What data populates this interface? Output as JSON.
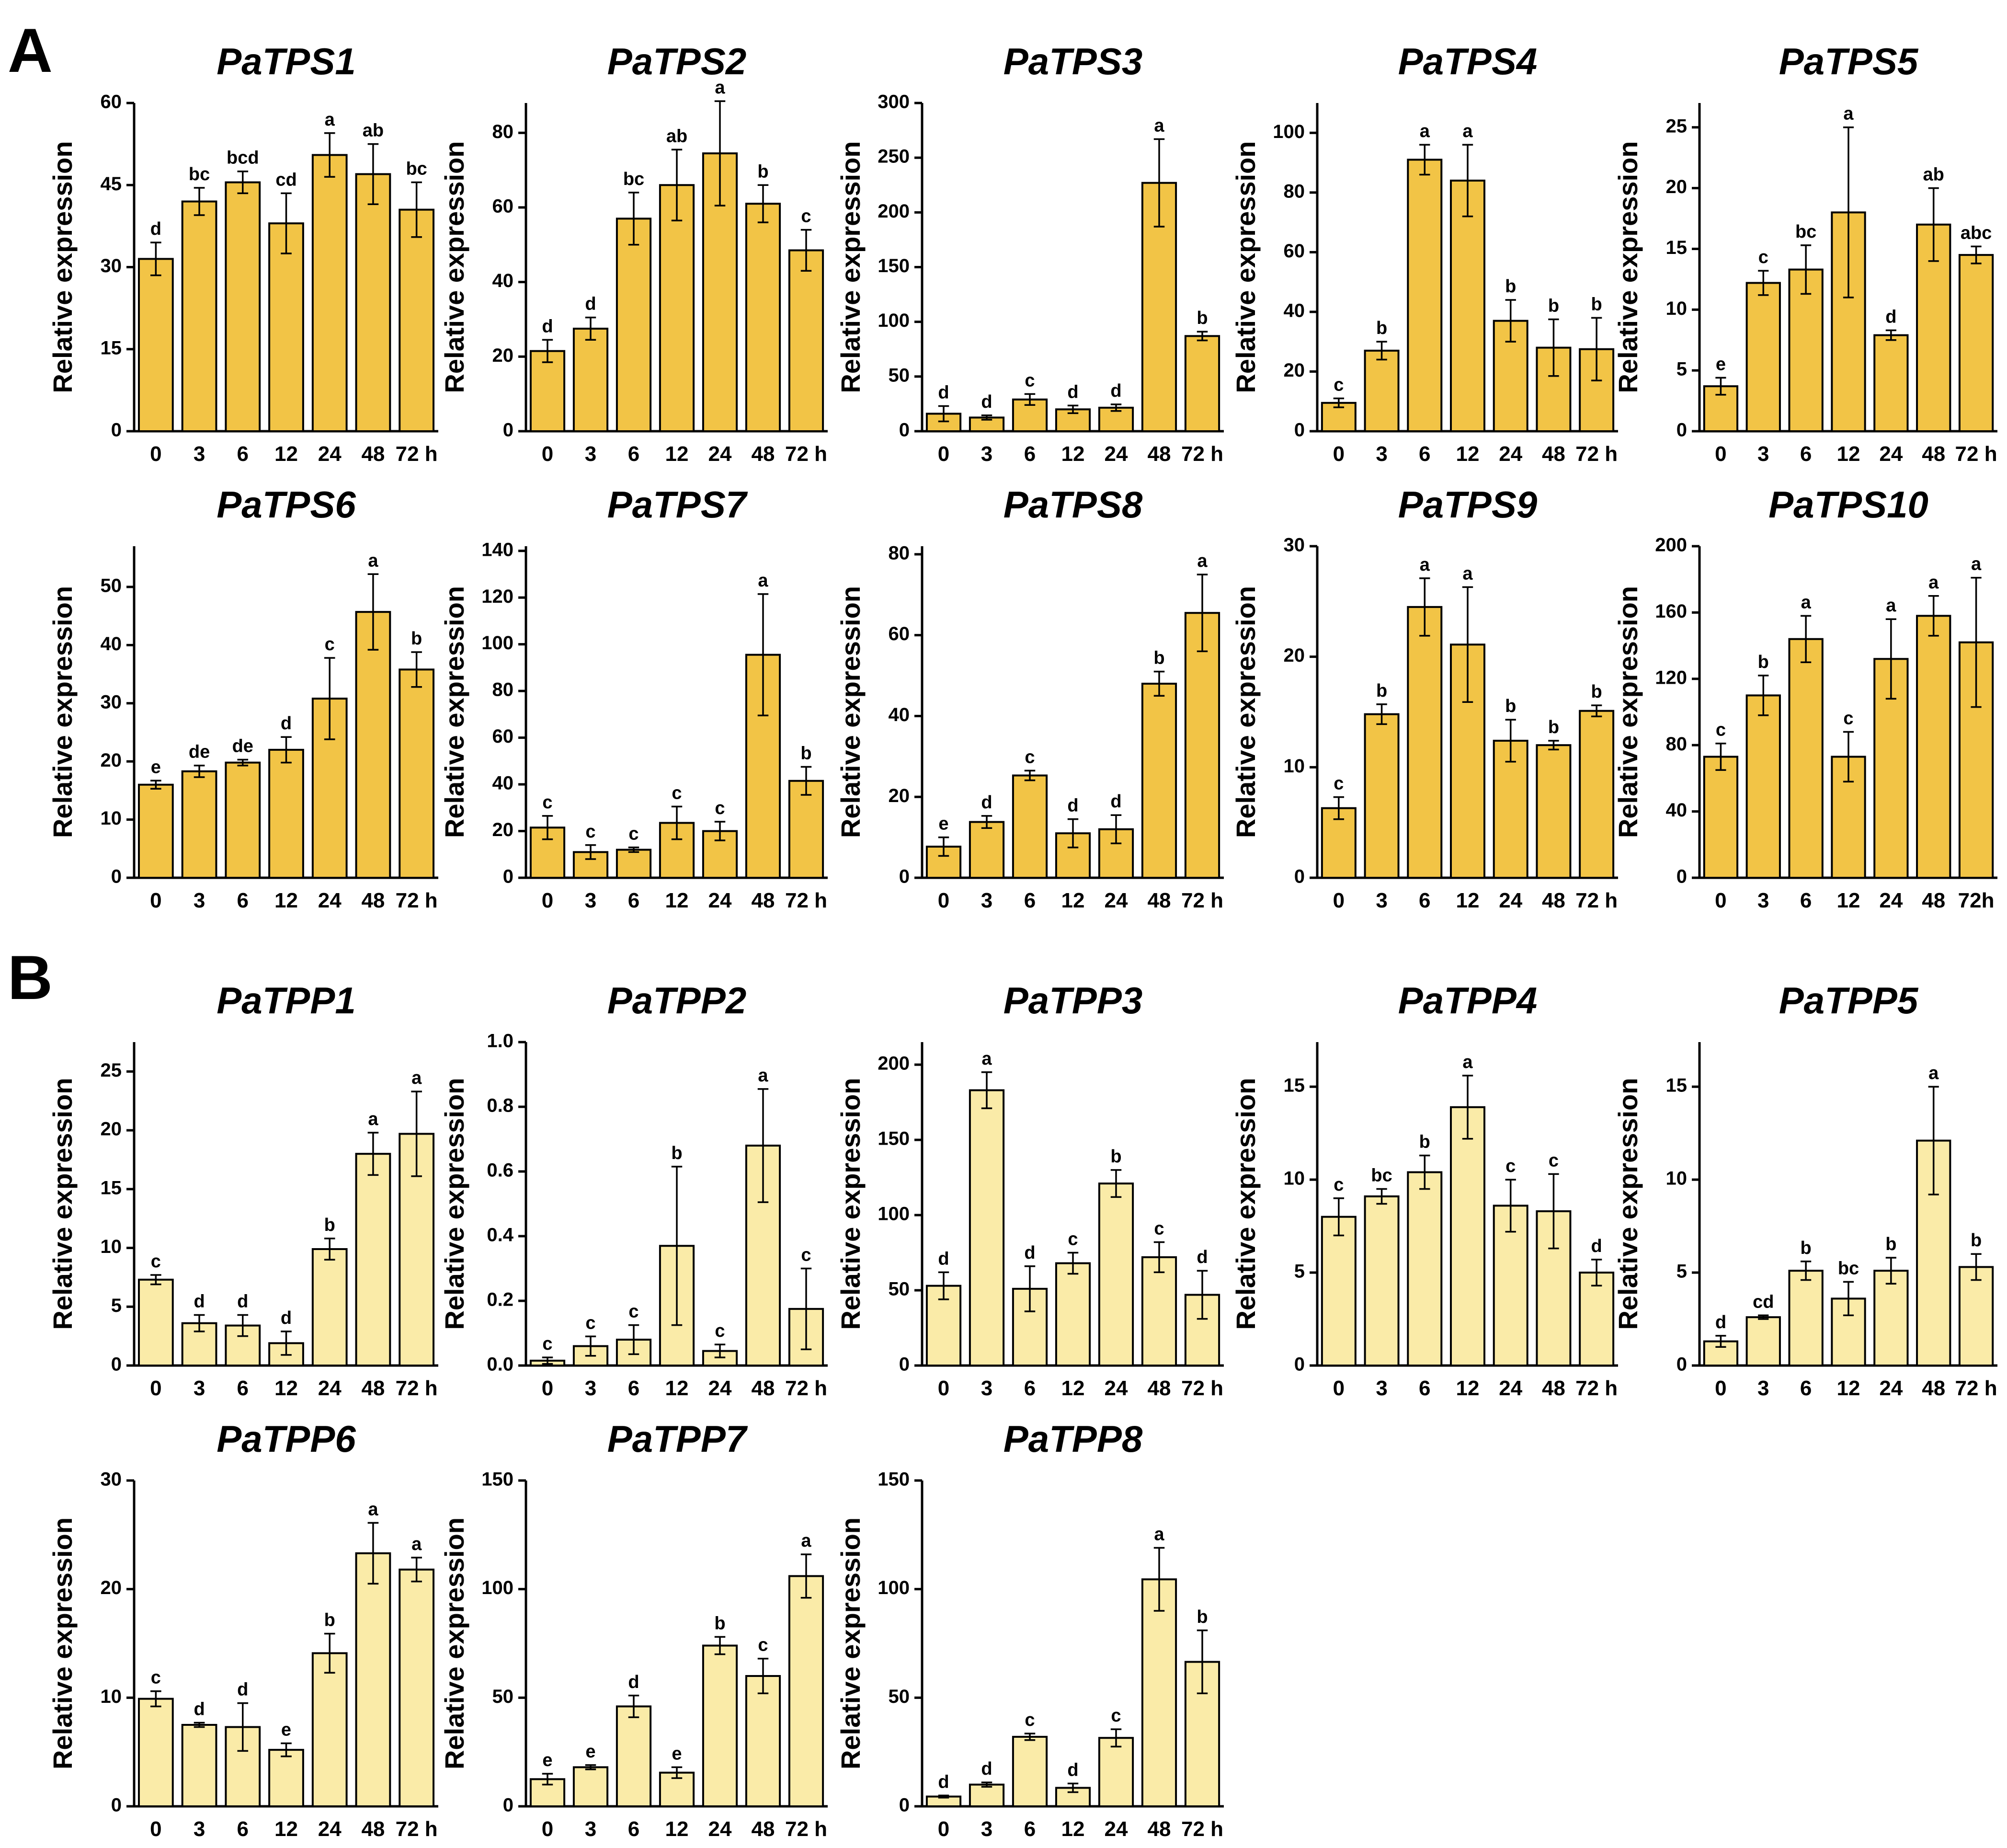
{
  "figure": {
    "panel_A_label": "A",
    "panel_B_label": "B",
    "bar_color_A": "#F2C446",
    "bar_color_B": "#FAEBA8"
  },
  "chart_data": [
    {
      "type": "bar",
      "panel": "A",
      "title": "PaTPS1",
      "ylabel": "Relative expression",
      "categories": [
        "0",
        "3",
        "6",
        "12",
        "24",
        "48",
        "72 h"
      ],
      "values": [
        31.5,
        42,
        45.5,
        38,
        50.5,
        47,
        40.5
      ],
      "errors": [
        3,
        2.5,
        2,
        5.5,
        4,
        5.5,
        5
      ],
      "letters": [
        "d",
        "bc",
        "bcd",
        "cd",
        "a",
        "ab",
        "bc"
      ],
      "ylim": [
        0,
        60
      ],
      "yticks": [
        "0",
        "15",
        "30",
        "45",
        "60"
      ]
    },
    {
      "type": "bar",
      "panel": "A",
      "title": "PaTPS2",
      "ylabel": "Relative expression",
      "categories": [
        "0",
        "3",
        "6",
        "12",
        "24",
        "48",
        "72 h"
      ],
      "values": [
        21.5,
        27.5,
        57,
        66,
        74.5,
        61,
        48.5
      ],
      "errors": [
        3,
        3,
        7,
        9.5,
        14,
        5,
        5.5
      ],
      "letters": [
        "d",
        "d",
        "bc",
        "ab",
        "a",
        "b",
        "c"
      ],
      "ylim": [
        0,
        88
      ],
      "yticks": [
        "0",
        "20",
        "40",
        "60",
        "80"
      ]
    },
    {
      "type": "bar",
      "panel": "A",
      "title": "PaTPS3",
      "ylabel": "Relative expression",
      "categories": [
        "0",
        "3",
        "6",
        "12",
        "24",
        "48",
        "72 h"
      ],
      "values": [
        16,
        12.5,
        29,
        20,
        21.5,
        227,
        87
      ],
      "errors": [
        7,
        2,
        5,
        3.5,
        3,
        40,
        4
      ],
      "letters": [
        "d",
        "d",
        "c",
        "d",
        "d",
        "a",
        "b"
      ],
      "ylim": [
        0,
        300
      ],
      "yticks": [
        "0",
        "50",
        "100",
        "150",
        "200",
        "250",
        "300"
      ]
    },
    {
      "type": "bar",
      "panel": "A",
      "title": "PaTPS4",
      "ylabel": "Relative expression",
      "categories": [
        "0",
        "3",
        "6",
        "12",
        "24",
        "48",
        "72 h"
      ],
      "values": [
        9.5,
        27,
        91,
        84,
        37,
        28,
        27.5
      ],
      "errors": [
        1.5,
        3,
        5,
        12,
        7,
        9.5,
        10.5
      ],
      "letters": [
        "c",
        "b",
        "a",
        "a",
        "b",
        "b",
        "b"
      ],
      "ylim": [
        0,
        110
      ],
      "yticks": [
        "0",
        "20",
        "40",
        "60",
        "80",
        "100"
      ]
    },
    {
      "type": "bar",
      "panel": "A",
      "title": "PaTPS5",
      "ylabel": "Relative expression",
      "categories": [
        "0",
        "3",
        "6",
        "12",
        "24",
        "48",
        "72 h"
      ],
      "values": [
        3.7,
        12.2,
        13.3,
        18,
        7.9,
        17,
        14.5
      ],
      "errors": [
        0.7,
        1,
        2,
        7,
        0.4,
        3,
        0.7
      ],
      "letters": [
        "e",
        "c",
        "bc",
        "a",
        "d",
        "ab",
        "abc"
      ],
      "ylim": [
        0,
        27
      ],
      "yticks": [
        "0",
        "5",
        "10",
        "15",
        "20",
        "25"
      ]
    },
    {
      "type": "bar",
      "panel": "A",
      "title": "PaTPS6",
      "ylabel": "Relative expression",
      "categories": [
        "0",
        "3",
        "6",
        "12",
        "24",
        "48",
        "72 h"
      ],
      "values": [
        16,
        18.3,
        19.8,
        22,
        30.8,
        45.7,
        35.8
      ],
      "errors": [
        0.7,
        1,
        0.5,
        2.2,
        7,
        6.5,
        3
      ],
      "letters": [
        "e",
        "de",
        "de",
        "d",
        "c",
        "a",
        "b"
      ],
      "ylim": [
        0,
        57
      ],
      "yticks": [
        "0",
        "10",
        "20",
        "30",
        "40",
        "50"
      ]
    },
    {
      "type": "bar",
      "panel": "A",
      "title": "PaTPS7",
      "ylabel": "Relative expression",
      "categories": [
        "0",
        "3",
        "6",
        "12",
        "24",
        "48",
        "72 h"
      ],
      "values": [
        21.5,
        11,
        12,
        23.5,
        20,
        95.5,
        41.5
      ],
      "errors": [
        5,
        3,
        1,
        7,
        4,
        26,
        6
      ],
      "letters": [
        "c",
        "c",
        "c",
        "c",
        "c",
        "a",
        "b"
      ],
      "ylim": [
        0,
        142
      ],
      "yticks": [
        "0",
        "20",
        "40",
        "60",
        "80",
        "100",
        "120",
        "140"
      ]
    },
    {
      "type": "bar",
      "panel": "A",
      "title": "PaTPS8",
      "ylabel": "Relative expression",
      "categories": [
        "0",
        "3",
        "6",
        "12",
        "24",
        "48",
        "72 h"
      ],
      "values": [
        7.7,
        13.8,
        25.3,
        11,
        12,
        48,
        65.5
      ],
      "errors": [
        2.3,
        1.5,
        1.2,
        3.5,
        3.5,
        3,
        9.5
      ],
      "letters": [
        "e",
        "d",
        "c",
        "d",
        "d",
        "b",
        "a"
      ],
      "ylim": [
        0,
        82
      ],
      "yticks": [
        "0",
        "20",
        "40",
        "60",
        "80"
      ]
    },
    {
      "type": "bar",
      "panel": "A",
      "title": "PaTPS9",
      "ylabel": "Relative expression",
      "categories": [
        "0",
        "3",
        "6",
        "12",
        "24",
        "48",
        "72 h"
      ],
      "values": [
        6.3,
        14.8,
        24.5,
        21.1,
        12.4,
        12,
        15.1
      ],
      "errors": [
        1,
        0.9,
        2.6,
        5.2,
        1.9,
        0.4,
        0.5
      ],
      "letters": [
        "c",
        "b",
        "a",
        "a",
        "b",
        "b",
        "b"
      ],
      "ylim": [
        0,
        30
      ],
      "yticks": [
        "0",
        "10",
        "20",
        "30"
      ]
    },
    {
      "type": "bar",
      "panel": "A",
      "title": "PaTPS10",
      "ylabel": "Relative expression",
      "categories": [
        "0",
        "3",
        "6",
        "12",
        "24",
        "48",
        "72h"
      ],
      "values": [
        73,
        110,
        144,
        73,
        132,
        158,
        142
      ],
      "errors": [
        8,
        12,
        14,
        15,
        24,
        12,
        39
      ],
      "letters": [
        "c",
        "b",
        "a",
        "c",
        "a",
        "a",
        "a"
      ],
      "ylim": [
        0,
        200
      ],
      "yticks": [
        "0",
        "40",
        "80",
        "120",
        "160",
        "200"
      ]
    },
    {
      "type": "bar",
      "panel": "B",
      "title": "PaTPP1",
      "ylabel": "Relative expression",
      "categories": [
        "0",
        "3",
        "6",
        "12",
        "24",
        "48",
        "72 h"
      ],
      "values": [
        7.3,
        3.6,
        3.4,
        1.9,
        9.9,
        18,
        19.7
      ],
      "errors": [
        0.4,
        0.7,
        0.9,
        1,
        0.9,
        1.8,
        3.6
      ],
      "letters": [
        "c",
        "d",
        "d",
        "d",
        "b",
        "a",
        "a"
      ],
      "ylim": [
        0,
        27.5
      ],
      "yticks": [
        "0",
        "5",
        "10",
        "15",
        "20",
        "25"
      ]
    },
    {
      "type": "bar",
      "panel": "B",
      "title": "PaTPP2",
      "ylabel": "Relative expression",
      "categories": [
        "0",
        "3",
        "6",
        "12",
        "24",
        "48",
        "72 h"
      ],
      "values": [
        0.015,
        0.06,
        0.08,
        0.37,
        0.045,
        0.68,
        0.175
      ],
      "errors": [
        0.01,
        0.03,
        0.045,
        0.245,
        0.02,
        0.175,
        0.125
      ],
      "letters": [
        "c",
        "c",
        "c",
        "b",
        "c",
        "a",
        "c"
      ],
      "ylim": [
        0,
        1.0
      ],
      "yticks": [
        "0.0",
        "0.2",
        "0.4",
        "0.6",
        "0.8",
        "1.0"
      ]
    },
    {
      "type": "bar",
      "panel": "B",
      "title": "PaTPP3",
      "ylabel": "Relative expression",
      "categories": [
        "0",
        "3",
        "6",
        "12",
        "24",
        "48",
        "72 h"
      ],
      "values": [
        53,
        183,
        51,
        68,
        121,
        72,
        47
      ],
      "errors": [
        9,
        12,
        15,
        7,
        9,
        10,
        16
      ],
      "letters": [
        "d",
        "a",
        "d",
        "c",
        "b",
        "c",
        "d"
      ],
      "ylim": [
        0,
        215
      ],
      "yticks": [
        "0",
        "50",
        "100",
        "150",
        "200"
      ]
    },
    {
      "type": "bar",
      "panel": "B",
      "title": "PaTPP4",
      "ylabel": "Relative expression",
      "categories": [
        "0",
        "3",
        "6",
        "12",
        "24",
        "48",
        "72 h"
      ],
      "values": [
        8,
        9.1,
        10.4,
        13.9,
        8.6,
        8.3,
        5
      ],
      "errors": [
        1,
        0.4,
        0.9,
        1.7,
        1.4,
        2,
        0.7
      ],
      "letters": [
        "c",
        "bc",
        "b",
        "a",
        "c",
        "c",
        "d"
      ],
      "ylim": [
        0,
        17.4
      ],
      "yticks": [
        "0",
        "5",
        "10",
        "15"
      ]
    },
    {
      "type": "bar",
      "panel": "B",
      "title": "PaTPP5",
      "ylabel": "Relative expression",
      "categories": [
        "0",
        "3",
        "6",
        "12",
        "24",
        "48",
        "72 h"
      ],
      "values": [
        1.3,
        2.6,
        5.1,
        3.6,
        5.1,
        12.1,
        5.3
      ],
      "errors": [
        0.3,
        0.1,
        0.5,
        0.9,
        0.7,
        2.9,
        0.7
      ],
      "letters": [
        "d",
        "cd",
        "b",
        "bc",
        "b",
        "a",
        "b"
      ],
      "ylim": [
        0,
        17.4
      ],
      "yticks": [
        "0",
        "5",
        "10",
        "15"
      ]
    },
    {
      "type": "bar",
      "panel": "B",
      "title": "PaTPP6",
      "ylabel": "Relative expression",
      "categories": [
        "0",
        "3",
        "6",
        "12",
        "24",
        "48",
        "72 h"
      ],
      "values": [
        9.9,
        7.5,
        7.3,
        5.2,
        14.1,
        23.3,
        21.8
      ],
      "errors": [
        0.7,
        0.2,
        2.2,
        0.6,
        1.8,
        2.8,
        1.1
      ],
      "letters": [
        "c",
        "d",
        "d",
        "e",
        "b",
        "a",
        "a"
      ],
      "ylim": [
        0,
        30
      ],
      "yticks": [
        "0",
        "10",
        "20",
        "30"
      ]
    },
    {
      "type": "bar",
      "panel": "B",
      "title": "PaTPP7",
      "ylabel": "Relative expression",
      "categories": [
        "0",
        "3",
        "6",
        "12",
        "24",
        "48",
        "72 h"
      ],
      "values": [
        12.5,
        18,
        46,
        15.5,
        74,
        60,
        106
      ],
      "errors": [
        2.5,
        1,
        5,
        2.5,
        4,
        8,
        10
      ],
      "letters": [
        "e",
        "e",
        "d",
        "e",
        "b",
        "c",
        "a"
      ],
      "ylim": [
        0,
        150
      ],
      "yticks": [
        "0",
        "50",
        "100",
        "150"
      ]
    },
    {
      "type": "bar",
      "panel": "B",
      "title": "PaTPP8",
      "ylabel": "Relative expression",
      "categories": [
        "0",
        "3",
        "6",
        "12",
        "24",
        "48",
        "72 h"
      ],
      "values": [
        4.5,
        10,
        32,
        8.5,
        31.5,
        104.5,
        66.5
      ],
      "errors": [
        0.5,
        1,
        1.5,
        2,
        4,
        14.5,
        14.5
      ],
      "letters": [
        "d",
        "d",
        "c",
        "d",
        "c",
        "a",
        "b"
      ],
      "ylim": [
        0,
        150
      ],
      "yticks": [
        "0",
        "50",
        "100",
        "150"
      ]
    }
  ]
}
